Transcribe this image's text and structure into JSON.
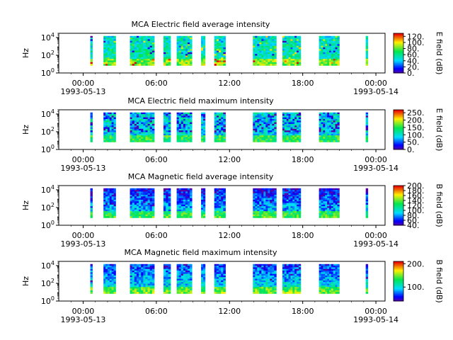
{
  "chart_data": [
    {
      "type": "heatmap",
      "title": "MCA  Electric field average intensity",
      "ylabel": "Hz",
      "y_scale": "log",
      "ylim": [
        1,
        30000
      ],
      "y_ticks": [
        "10^0",
        "10^2",
        "10^4"
      ],
      "x_ticks": [
        "00:00",
        "06:00",
        "12:00",
        "18:00",
        "00:00"
      ],
      "x_tick_dates": [
        "1993-05-13",
        "1993-05-14"
      ],
      "xlim": [
        "1993-05-12 22:00",
        "1993-05-14 00:45"
      ],
      "colorbar": {
        "label": "E field (dB)",
        "range": [
          0,
          130
        ],
        "ticks": [
          "0.",
          "20.",
          "40.",
          "60.",
          "80.",
          "100.",
          "120."
        ]
      }
    },
    {
      "type": "heatmap",
      "title": "MCA  Electric field maximum intensity",
      "ylabel": "Hz",
      "y_scale": "log",
      "ylim": [
        1,
        30000
      ],
      "y_ticks": [
        "10^0",
        "10^2",
        "10^4"
      ],
      "x_ticks": [
        "00:00",
        "06:00",
        "12:00",
        "18:00",
        "00:00"
      ],
      "x_tick_dates": [
        "1993-05-13",
        "1993-05-14"
      ],
      "xlim": [
        "1993-05-12 22:00",
        "1993-05-14 00:45"
      ],
      "colorbar": {
        "label": "E field (dB)",
        "range": [
          0,
          270
        ],
        "ticks": [
          "0.",
          "50.",
          "100.",
          "150.",
          "200.",
          "250."
        ]
      }
    },
    {
      "type": "heatmap",
      "title": "MCA  Magnetic field average intensity",
      "ylabel": "Hz",
      "y_scale": "log",
      "ylim": [
        1,
        30000
      ],
      "y_ticks": [
        "10^0",
        "10^2",
        "10^4"
      ],
      "x_ticks": [
        "00:00",
        "06:00",
        "12:00",
        "18:00",
        "00:00"
      ],
      "x_tick_dates": [
        "1993-05-13",
        "1993-05-14"
      ],
      "xlim": [
        "1993-05-12 22:00",
        "1993-05-14 00:45"
      ],
      "colorbar": {
        "label": "B field (dB)",
        "range": [
          40,
          200
        ],
        "ticks": [
          "40.",
          "60.",
          "80.",
          "100.",
          "120.",
          "140.",
          "160.",
          "180.",
          "200."
        ]
      }
    },
    {
      "type": "heatmap",
      "title": "MCA  Magnetic field maximum intensity",
      "ylabel": "Hz",
      "y_scale": "log",
      "ylim": [
        1,
        30000
      ],
      "y_ticks": [
        "10^0",
        "10^2",
        "10^4"
      ],
      "x_ticks": [
        "00:00",
        "06:00",
        "12:00",
        "18:00",
        "00:00"
      ],
      "x_tick_dates": [
        "1993-05-13",
        "1993-05-14"
      ],
      "xlim": [
        "1993-05-12 22:00",
        "1993-05-14 00:45"
      ],
      "colorbar": {
        "label": "B field (dB)",
        "range": [
          40,
          210
        ],
        "ticks": [
          "100.",
          "200."
        ]
      }
    }
  ],
  "data_intervals": [
    [
      "1993-05-13 00:35",
      "1993-05-13 00:40"
    ],
    [
      "1993-05-13 01:40",
      "1993-05-13 02:40"
    ],
    [
      "1993-05-13 03:50",
      "1993-05-13 05:50"
    ],
    [
      "1993-05-13 06:35",
      "1993-05-13 07:10"
    ],
    [
      "1993-05-13 07:40",
      "1993-05-13 08:55"
    ],
    [
      "1993-05-13 09:40",
      "1993-05-13 10:00"
    ],
    [
      "1993-05-13 10:45",
      "1993-05-13 11:40"
    ],
    [
      "1993-05-13 13:55",
      "1993-05-13 15:50"
    ],
    [
      "1993-05-13 16:20",
      "1993-05-13 17:50"
    ],
    [
      "1993-05-13 19:20",
      "1993-05-13 21:00"
    ],
    [
      "1993-05-13 23:10",
      "1993-05-13 23:20"
    ]
  ]
}
